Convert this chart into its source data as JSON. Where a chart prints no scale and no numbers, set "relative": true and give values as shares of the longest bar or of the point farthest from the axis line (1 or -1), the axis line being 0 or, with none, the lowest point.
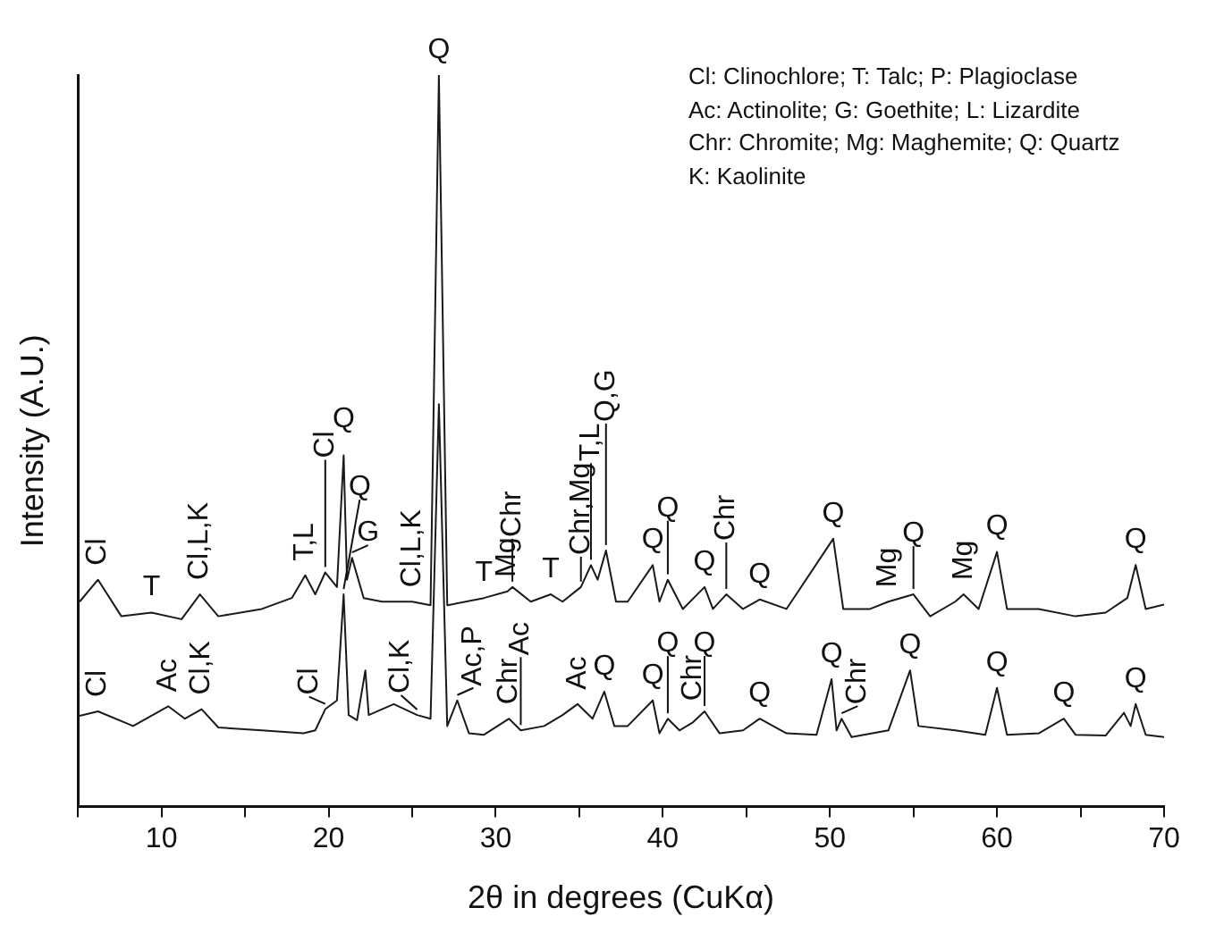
{
  "chart_data": {
    "type": "line",
    "relative": true,
    "xlabel": "2θ in degrees (CuKα)",
    "ylabel": "Intensity (A.U.)",
    "xlim": [
      5,
      70
    ],
    "xticks": [
      {
        "value": 5,
        "label": null
      },
      10,
      {
        "value": 15,
        "label": null
      },
      20,
      {
        "value": 25,
        "label": null
      },
      30,
      {
        "value": 35,
        "label": null
      },
      40,
      {
        "value": 45,
        "label": null
      },
      50,
      {
        "value": 55,
        "label": null
      },
      60,
      {
        "value": 65,
        "label": null
      },
      70
    ],
    "grid": false,
    "legend": false,
    "marker": "none",
    "line_style": "solid",
    "series": [
      {
        "color": "#1a1a1a",
        "x": [
          5.1,
          6.2,
          7.6,
          9.4,
          11.2,
          12.3,
          13.4,
          16,
          17.8,
          18.6,
          19.2,
          19.8,
          20.5,
          20.9,
          21.1,
          21.4,
          22.1,
          23.2,
          25,
          26.1,
          26.6,
          27.1,
          29.3,
          30.7,
          31,
          32.1,
          33.3,
          34,
          35.1,
          35.7,
          36.1,
          36.6,
          37.2,
          37.9,
          39.4,
          39.8,
          40.3,
          41.2,
          42.5,
          43,
          43.8,
          44.8,
          45.8,
          47.4,
          50.2,
          50.8,
          52.4,
          53.5,
          55,
          56,
          57.5,
          58,
          58.9,
          60,
          60.6,
          62.5,
          64.7,
          66.5,
          67.8,
          68.3,
          68.9,
          70
        ],
        "values": [
          0.28,
          0.31,
          0.26,
          0.265,
          0.256,
          0.29,
          0.26,
          0.27,
          0.285,
          0.316,
          0.29,
          0.32,
          0.3,
          0.48,
          0.31,
          0.34,
          0.285,
          0.28,
          0.28,
          0.275,
          1.0,
          0.275,
          0.285,
          0.294,
          0.3,
          0.28,
          0.29,
          0.28,
          0.3,
          0.33,
          0.31,
          0.35,
          0.28,
          0.28,
          0.33,
          0.28,
          0.31,
          0.27,
          0.3,
          0.27,
          0.29,
          0.27,
          0.283,
          0.27,
          0.366,
          0.27,
          0.27,
          0.28,
          0.29,
          0.26,
          0.28,
          0.29,
          0.27,
          0.348,
          0.27,
          0.27,
          0.26,
          0.265,
          0.285,
          0.33,
          0.27,
          0.276
        ]
      },
      {
        "color": "#1a1a1a",
        "x": [
          5.1,
          6.2,
          8.3,
          10.4,
          11.4,
          12.4,
          13.4,
          16,
          18.5,
          19.2,
          19.8,
          20.5,
          20.9,
          21.2,
          21.7,
          22.2,
          22.4,
          23.9,
          25.3,
          26.1,
          26.6,
          27.1,
          27.7,
          28.4,
          29.3,
          30.8,
          31.5,
          32.9,
          34,
          34.9,
          35.8,
          36.5,
          37.1,
          37.9,
          39.4,
          39.8,
          40.3,
          41,
          41.8,
          42.5,
          43.4,
          44.8,
          45.8,
          47.4,
          49.2,
          50.1,
          50.4,
          50.7,
          51.3,
          53.5,
          54.8,
          55.3,
          57.5,
          59.3,
          60,
          60.6,
          62.5,
          64,
          64.7,
          66.5,
          67.6,
          68,
          68.3,
          68.9,
          70
        ],
        "values": [
          0.124,
          0.13,
          0.11,
          0.137,
          0.12,
          0.133,
          0.108,
          0.104,
          0.1,
          0.104,
          0.133,
          0.145,
          0.29,
          0.125,
          0.118,
          0.186,
          0.125,
          0.14,
          0.125,
          0.12,
          0.55,
          0.11,
          0.145,
          0.1,
          0.098,
          0.12,
          0.104,
          0.11,
          0.125,
          0.14,
          0.12,
          0.157,
          0.11,
          0.11,
          0.145,
          0.1,
          0.12,
          0.104,
          0.115,
          0.13,
          0.1,
          0.104,
          0.12,
          0.1,
          0.098,
          0.174,
          0.104,
          0.12,
          0.095,
          0.104,
          0.186,
          0.11,
          0.104,
          0.098,
          0.162,
          0.098,
          0.1,
          0.12,
          0.098,
          0.097,
          0.128,
          0.11,
          0.14,
          0.098,
          0.095
        ]
      }
    ],
    "annotations": [
      "Cl: Clinochlore; T: Talc; P: Plagioclase",
      "Ac: Actinolite; G: Goethite; L: Lizardite",
      "Chr: Chromite; Mg: Maghemite; Q: Quartz",
      "K: Kaolinite",
      {
        "text": "Cl",
        "x": 6.2,
        "y": 0.31
      },
      {
        "text": "T",
        "x": 9.4,
        "y": 0.265
      },
      {
        "text": "Cl,L,K",
        "x": 12.3,
        "y": 0.29
      },
      {
        "text": "T,L",
        "x": 18.6,
        "y": 0.316
      },
      {
        "text": "Cl",
        "x": 19.8,
        "y": 0.32
      },
      {
        "text": "Q",
        "x": 20.9,
        "y": 0.48
      },
      {
        "text": "G",
        "x": 21.4,
        "y": 0.34
      },
      {
        "text": "Cl,L,K",
        "x": 25,
        "y": 0.28
      },
      {
        "text": "Q",
        "x": 26.6,
        "y": 1.0
      },
      {
        "text": "T",
        "x": 29.3,
        "y": 0.285
      },
      {
        "text": "Mg",
        "x": 30.7,
        "y": 0.294
      },
      {
        "text": "Chr",
        "x": 31,
        "y": 0.3
      },
      {
        "text": "T",
        "x": 33.3,
        "y": 0.29
      },
      {
        "text": "Chr,Mg",
        "x": 35.1,
        "y": 0.3
      },
      {
        "text": "T,L",
        "x": 35.7,
        "y": 0.33
      },
      {
        "text": "Q,G",
        "x": 36.6,
        "y": 0.35
      },
      {
        "text": "Q",
        "x": 39.4,
        "y": 0.33
      },
      {
        "text": "Q",
        "x": 40.3,
        "y": 0.31
      },
      {
        "text": "Q",
        "x": 42.5,
        "y": 0.3
      },
      {
        "text": "Chr",
        "x": 43.8,
        "y": 0.29
      },
      {
        "text": "Q",
        "x": 45.8,
        "y": 0.283
      },
      {
        "text": "Q",
        "x": 50.2,
        "y": 0.366
      },
      {
        "text": "Mg",
        "x": 53.5,
        "y": 0.28
      },
      {
        "text": "Q",
        "x": 55,
        "y": 0.29
      },
      {
        "text": "Mg",
        "x": 58,
        "y": 0.29
      },
      {
        "text": "Q",
        "x": 60,
        "y": 0.348
      },
      {
        "text": "Q",
        "x": 68.3,
        "y": 0.33
      },
      {
        "text": "Cl",
        "x": 6.2,
        "y": 0.13
      },
      {
        "text": "Ac",
        "x": 10.4,
        "y": 0.137
      },
      {
        "text": "Cl,K",
        "x": 12.4,
        "y": 0.133
      },
      {
        "text": "Cl",
        "x": 19.8,
        "y": 0.133
      },
      {
        "text": "Q",
        "x": 20.9,
        "y": 0.29
      },
      {
        "text": "Cl,K",
        "x": 25.3,
        "y": 0.125
      },
      {
        "text": "Ac,P",
        "x": 27.7,
        "y": 0.145
      },
      {
        "text": "Chr",
        "x": 30.8,
        "y": 0.12
      },
      {
        "text": "Ac",
        "x": 31.5,
        "y": 0.104
      },
      {
        "text": "Ac",
        "x": 34.9,
        "y": 0.14
      },
      {
        "text": "Q",
        "x": 36.5,
        "y": 0.157
      },
      {
        "text": "Q",
        "x": 39.4,
        "y": 0.145
      },
      {
        "text": "Q",
        "x": 40.3,
        "y": 0.12
      },
      {
        "text": "Chr",
        "x": 41.8,
        "y": 0.115
      },
      {
        "text": "Q",
        "x": 42.5,
        "y": 0.13
      },
      {
        "text": "Q",
        "x": 45.8,
        "y": 0.12
      },
      {
        "text": "Q",
        "x": 50.1,
        "y": 0.174
      },
      {
        "text": "Chr",
        "x": 50.7,
        "y": 0.12
      },
      {
        "text": "Q",
        "x": 54.8,
        "y": 0.186
      },
      {
        "text": "Q",
        "x": 60,
        "y": 0.162
      },
      {
        "text": "Q",
        "x": 64,
        "y": 0.12
      },
      {
        "text": "Q",
        "x": 68.3,
        "y": 0.14
      }
    ]
  }
}
